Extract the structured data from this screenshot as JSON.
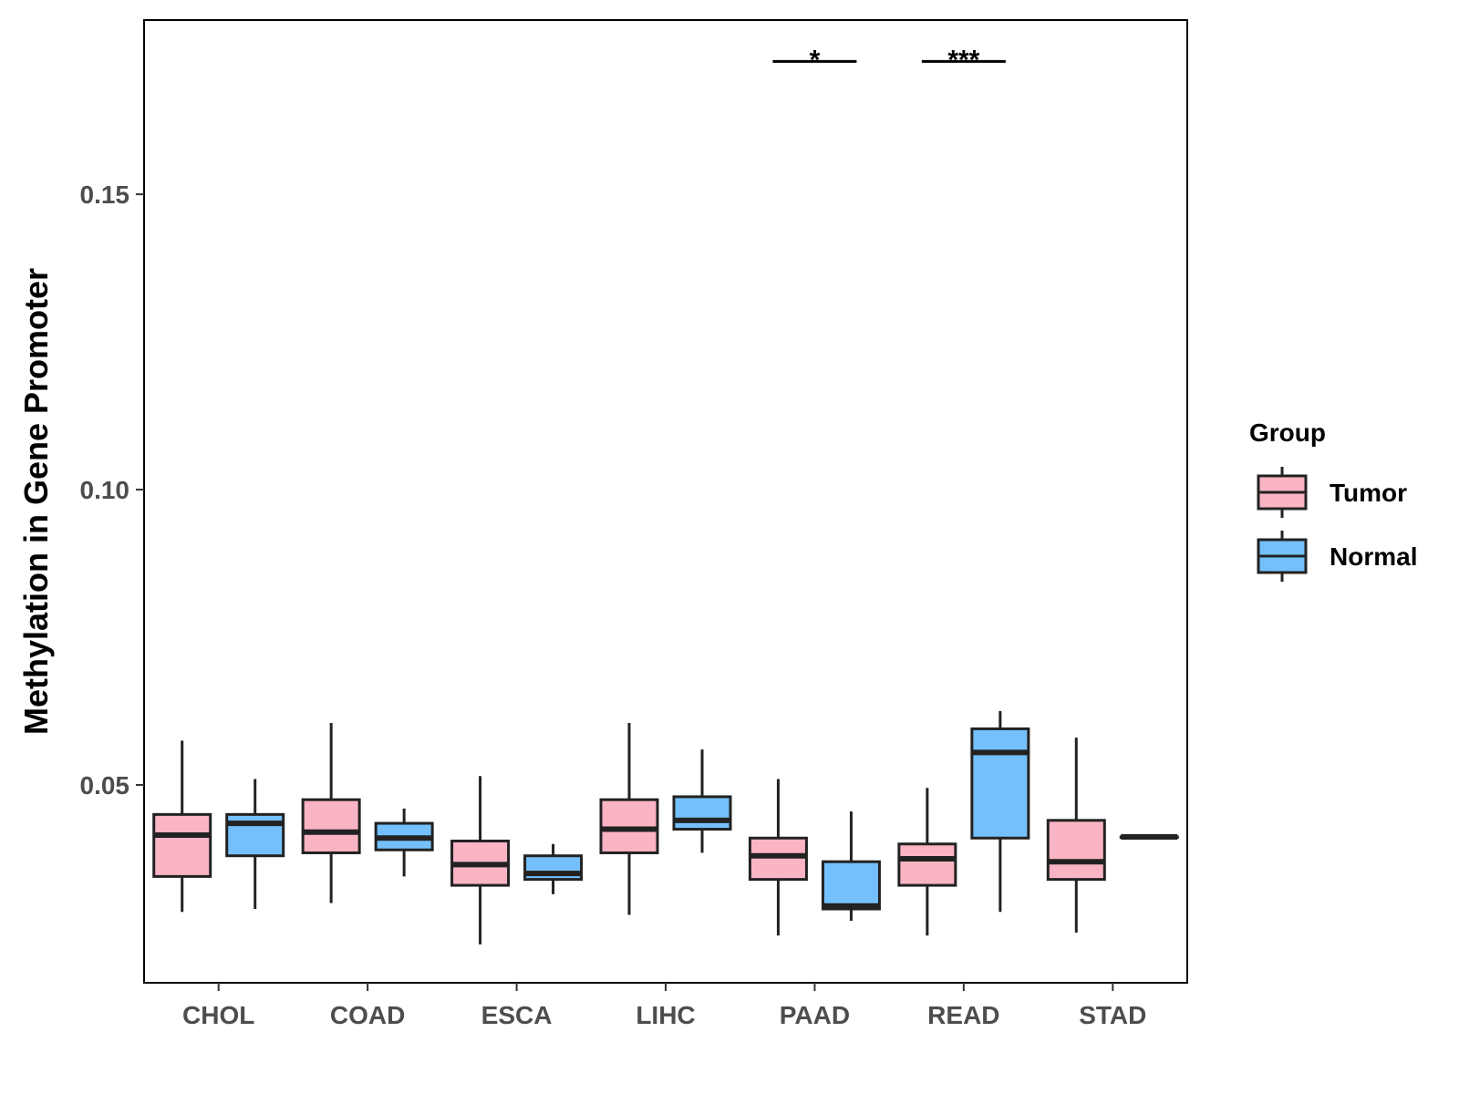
{
  "chart_data": {
    "type": "boxplot",
    "ylabel": "Methylation in Gene Promoter",
    "xlabel": "",
    "ylim": [
      0.0165,
      0.1795
    ],
    "yticks": [
      0.05,
      0.1,
      0.15
    ],
    "ytick_labels": [
      "0.05",
      "0.10",
      "0.15"
    ],
    "categories": [
      "CHOL",
      "COAD",
      "ESCA",
      "LIHC",
      "PAAD",
      "READ",
      "STAD"
    ],
    "legend": {
      "title": "Group",
      "position": "right",
      "entries": [
        {
          "name": "Tumor",
          "color": "#fbb4c4"
        },
        {
          "name": "Normal",
          "color": "#74c0fc"
        }
      ]
    },
    "series": [
      {
        "name": "Tumor",
        "color": "#fbb4c4",
        "boxes": [
          {
            "category": "CHOL",
            "min": 0.0285,
            "q1": 0.0345,
            "median": 0.0415,
            "q3": 0.045,
            "max": 0.0575
          },
          {
            "category": "COAD",
            "min": 0.03,
            "q1": 0.0385,
            "median": 0.042,
            "q3": 0.0475,
            "max": 0.0605
          },
          {
            "category": "ESCA",
            "min": 0.023,
            "q1": 0.033,
            "median": 0.0365,
            "q3": 0.0405,
            "max": 0.0515
          },
          {
            "category": "LIHC",
            "min": 0.028,
            "q1": 0.0385,
            "median": 0.0425,
            "q3": 0.0475,
            "max": 0.0605
          },
          {
            "category": "PAAD",
            "min": 0.0245,
            "q1": 0.034,
            "median": 0.038,
            "q3": 0.041,
            "max": 0.051
          },
          {
            "category": "READ",
            "min": 0.0245,
            "q1": 0.033,
            "median": 0.0375,
            "q3": 0.04,
            "max": 0.0495
          },
          {
            "category": "STAD",
            "min": 0.025,
            "q1": 0.034,
            "median": 0.037,
            "q3": 0.044,
            "max": 0.058
          }
        ]
      },
      {
        "name": "Normal",
        "color": "#74c0fc",
        "boxes": [
          {
            "category": "CHOL",
            "min": 0.029,
            "q1": 0.038,
            "median": 0.0435,
            "q3": 0.045,
            "max": 0.051
          },
          {
            "category": "COAD",
            "min": 0.0345,
            "q1": 0.039,
            "median": 0.041,
            "q3": 0.0435,
            "max": 0.046
          },
          {
            "category": "ESCA",
            "min": 0.0315,
            "q1": 0.034,
            "median": 0.035,
            "q3": 0.038,
            "max": 0.04
          },
          {
            "category": "LIHC",
            "min": 0.0385,
            "q1": 0.0425,
            "median": 0.044,
            "q3": 0.048,
            "max": 0.056
          },
          {
            "category": "PAAD",
            "min": 0.027,
            "q1": 0.029,
            "median": 0.0295,
            "q3": 0.037,
            "max": 0.0455
          },
          {
            "category": "READ",
            "min": 0.0285,
            "q1": 0.041,
            "median": 0.0555,
            "q3": 0.0595,
            "max": 0.0625
          },
          {
            "category": "STAD",
            "min": 0.0412,
            "q1": 0.0412,
            "median": 0.0412,
            "q3": 0.0412,
            "max": 0.0412
          }
        ]
      }
    ],
    "annotations": [
      {
        "category": "PAAD",
        "label": "*",
        "y": 0.1725
      },
      {
        "category": "READ",
        "label": "***",
        "y": 0.1725
      }
    ]
  }
}
